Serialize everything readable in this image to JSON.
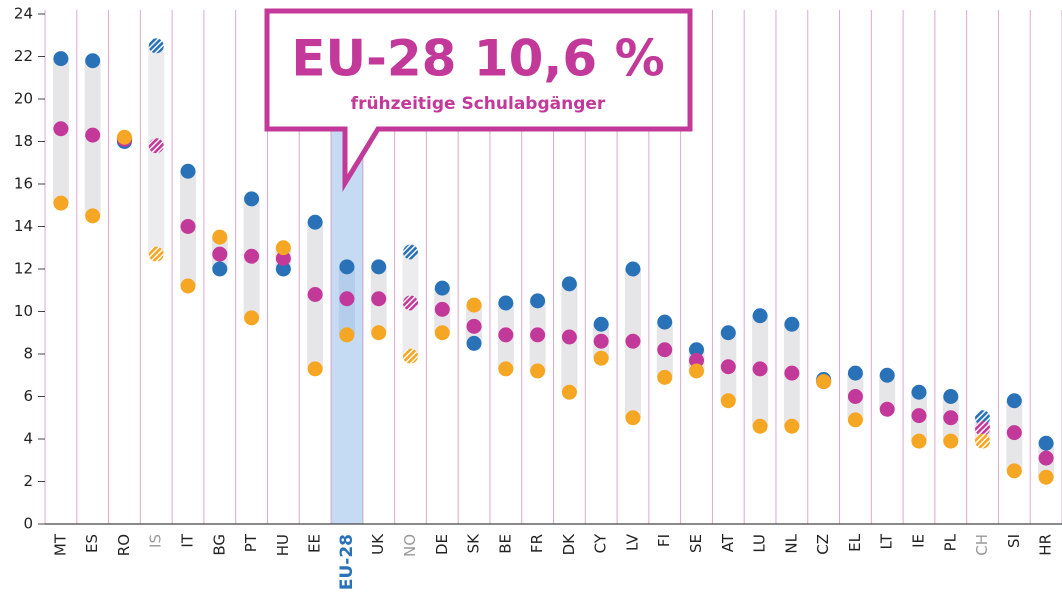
{
  "chart_data": {
    "type": "dot-range",
    "annotation": {
      "title": "EU-28 10,6 %",
      "subtitle": "frühzeitige Schulabgänger"
    },
    "categories": [
      "MT",
      "ES",
      "RO",
      "IS",
      "IT",
      "BG",
      "PT",
      "HU",
      "EE",
      "EU-28",
      "UK",
      "NO",
      "DE",
      "SK",
      "BE",
      "FR",
      "DK",
      "CY",
      "LV",
      "FI",
      "SE",
      "AT",
      "LU",
      "NL",
      "CZ",
      "EL",
      "LT",
      "IE",
      "PL",
      "CH",
      "SI",
      "HR"
    ],
    "highlight_category": 9,
    "hatched_categories": [
      3,
      11,
      29
    ],
    "series": [
      {
        "color": "#2a72b8",
        "values": [
          21.9,
          21.8,
          18.0,
          22.5,
          16.6,
          12.0,
          15.3,
          12.0,
          14.2,
          12.1,
          12.1,
          12.8,
          11.1,
          8.5,
          10.4,
          10.5,
          11.3,
          9.4,
          12.0,
          9.5,
          8.2,
          9.0,
          9.8,
          9.4,
          6.8,
          7.1,
          7.0,
          6.2,
          6.0,
          5.0,
          5.8,
          3.8
        ]
      },
      {
        "color": "#c2399a",
        "values": [
          18.6,
          18.3,
          18.1,
          17.8,
          14.0,
          12.7,
          12.6,
          12.5,
          10.8,
          10.6,
          10.6,
          10.4,
          10.1,
          9.3,
          8.9,
          8.9,
          8.8,
          8.6,
          8.6,
          8.2,
          7.7,
          7.4,
          7.3,
          7.1,
          6.7,
          6.0,
          5.4,
          5.1,
          5.0,
          4.5,
          4.3,
          3.1
        ]
      },
      {
        "color": "#f5a623",
        "values": [
          15.1,
          14.5,
          18.2,
          12.7,
          11.2,
          13.5,
          9.7,
          13.0,
          7.3,
          8.9,
          9.0,
          7.9,
          9.0,
          10.3,
          7.3,
          7.2,
          6.2,
          7.8,
          5.0,
          6.9,
          7.2,
          5.8,
          4.6,
          4.6,
          6.7,
          4.9,
          null,
          3.9,
          3.9,
          3.9,
          2.5,
          2.2
        ]
      }
    ],
    "ylim": [
      0,
      24
    ],
    "yticks": [
      0,
      2,
      4,
      6,
      8,
      10,
      12,
      14,
      16,
      18,
      20,
      22,
      24
    ]
  }
}
